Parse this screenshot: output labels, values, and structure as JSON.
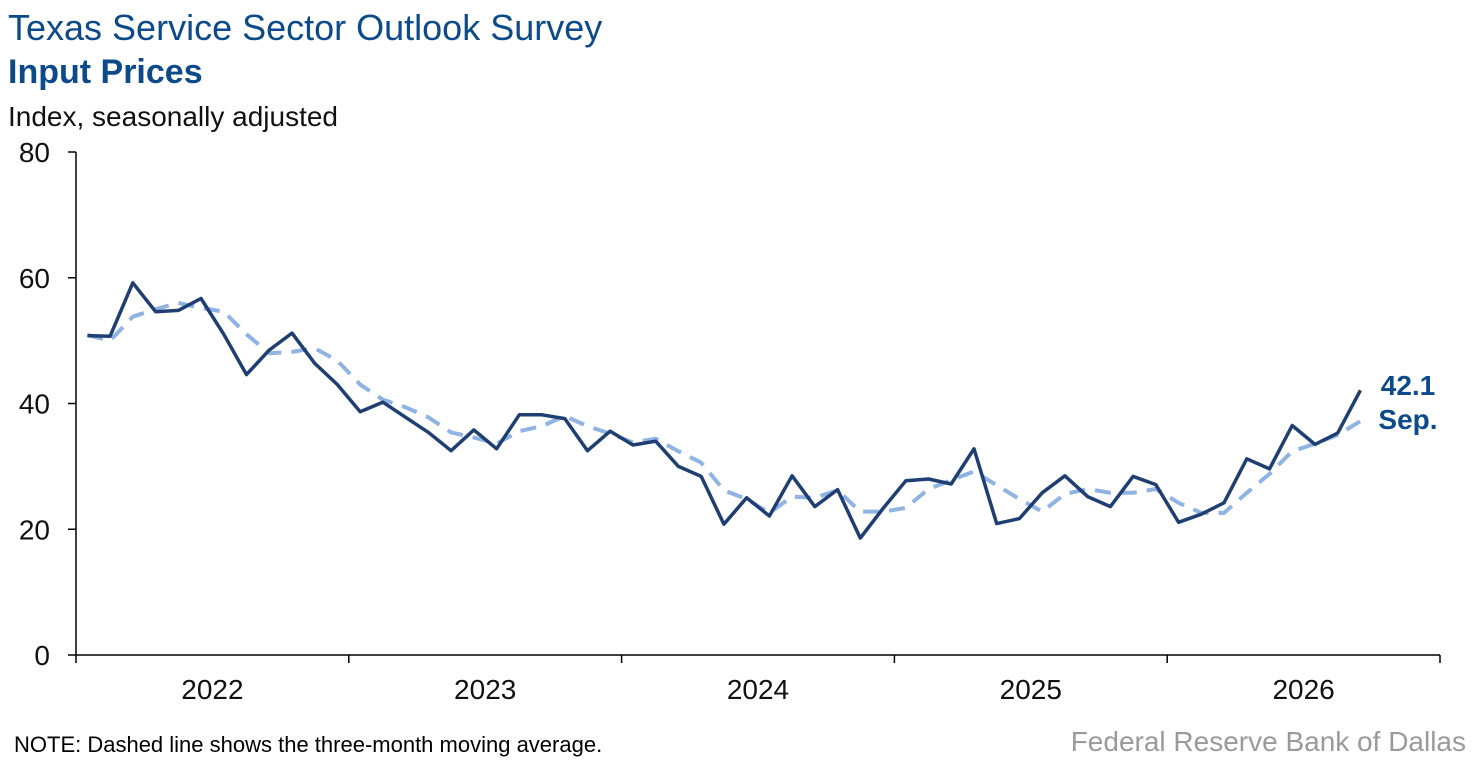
{
  "header": {
    "title": "Texas Service Sector Outlook Survey",
    "subtitle": "Input Prices",
    "ylabel": "Index, seasonally adjusted"
  },
  "footer": {
    "note": "NOTE: Dashed line shows the three-month moving average.",
    "source": "Federal Reserve Bank of Dallas"
  },
  "colors": {
    "series": "#1f3e72",
    "moving_average": "#8fb3e3",
    "axis": "#000000",
    "accent": "#0c4a8a"
  },
  "chart_data": {
    "type": "line",
    "title": "Texas Service Sector Outlook Survey",
    "subtitle": "Input Prices",
    "ylabel": "Index, seasonally adjusted",
    "xlabel": "",
    "ylim": [
      0,
      80
    ],
    "yticks": [
      0,
      20,
      40,
      60,
      80
    ],
    "x_start": "2022-01",
    "x_end": "2026-12",
    "x_axis_labels": [
      "2022",
      "2023",
      "2024",
      "2025",
      "2026"
    ],
    "grid": false,
    "x": [
      "2022-01",
      "2022-02",
      "2022-03",
      "2022-04",
      "2022-05",
      "2022-06",
      "2022-07",
      "2022-08",
      "2022-09",
      "2022-10",
      "2022-11",
      "2022-12",
      "2023-01",
      "2023-02",
      "2023-03",
      "2023-04",
      "2023-05",
      "2023-06",
      "2023-07",
      "2023-08",
      "2023-09",
      "2023-10",
      "2023-11",
      "2023-12",
      "2024-01",
      "2024-02",
      "2024-03",
      "2024-04",
      "2024-05",
      "2024-06",
      "2024-07",
      "2024-08",
      "2024-09",
      "2024-10",
      "2024-11",
      "2024-12",
      "2025-01",
      "2025-02",
      "2025-03",
      "2025-04",
      "2025-05",
      "2025-06",
      "2025-07",
      "2025-08",
      "2025-09",
      "2025-10",
      "2025-11",
      "2025-12",
      "2026-01",
      "2026-02",
      "2026-03",
      "2026-04",
      "2026-05",
      "2026-06",
      "2026-07",
      "2026-08",
      "2026-09"
    ],
    "series": [
      {
        "name": "",
        "style": "solid",
        "values": [
          50.8,
          50.7,
          59.2,
          54.6,
          54.8,
          56.7,
          51.0,
          44.6,
          48.5,
          51.2,
          46.4,
          43.0,
          38.7,
          40.2,
          37.8,
          35.4,
          32.5,
          35.8,
          32.8,
          38.2,
          38.2,
          37.6,
          32.5,
          35.6,
          33.4,
          34.0,
          30.0,
          28.4,
          20.8,
          25.0,
          22.1,
          28.5,
          23.6,
          26.3,
          18.6,
          23.3,
          27.7,
          28.0,
          27.2,
          32.8,
          20.9,
          21.7,
          25.8,
          28.5,
          25.2,
          23.6,
          28.4,
          27.1,
          21.1,
          22.4,
          24.2,
          31.2,
          29.6,
          36.5,
          33.5,
          35.3,
          42.1
        ]
      },
      {
        "name": "",
        "style": "dashed",
        "values": [
          50.9,
          50.0,
          53.8,
          55.0,
          56.0,
          55.2,
          54.6,
          51.0,
          48.0,
          48.2,
          48.8,
          46.8,
          43.0,
          40.6,
          39.4,
          37.8,
          35.4,
          34.6,
          33.6,
          35.6,
          36.4,
          38.0,
          36.4,
          35.2,
          33.8,
          34.4,
          32.4,
          30.6,
          26.2,
          24.8,
          22.6,
          25.2,
          25.0,
          26.2,
          22.8,
          22.8,
          23.4,
          26.4,
          27.8,
          29.2,
          27.0,
          24.8,
          22.8,
          25.6,
          26.4,
          25.8,
          25.8,
          26.4,
          24.2,
          22.6,
          22.6,
          25.8,
          28.8,
          32.4,
          33.6,
          35.0,
          37.2
        ]
      }
    ],
    "annotation": {
      "value": "42.1",
      "period": "Sep."
    }
  }
}
